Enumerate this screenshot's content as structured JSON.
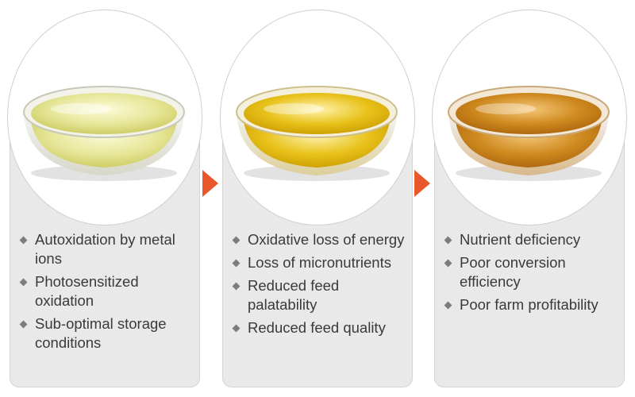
{
  "colors": {
    "arrow": "#e8582a",
    "panel": "#e9e9e9",
    "bullet_marker": "#7d7d7d",
    "text": "#3a3a3a"
  },
  "stages": [
    {
      "image": "bowl-of-pale-yellow-oil",
      "oil_color": "#e7e79a",
      "bullets": [
        "Autoxidation by metal ions",
        "Photosensitized oxidation",
        "Sub-optimal storage conditions"
      ]
    },
    {
      "image": "bowl-of-golden-yellow-oil",
      "oil_color": "#e8c21a",
      "bullets": [
        "Oxidative loss of energy",
        "Loss of micronutrients",
        "Reduced feed palatability",
        "Reduced feed quality"
      ]
    },
    {
      "image": "bowl-of-amber-oil",
      "oil_color": "#cf8a1f",
      "bullets": [
        "Nutrient deficiency",
        "Poor conversion efficiency",
        "Poor farm profitability"
      ]
    }
  ]
}
